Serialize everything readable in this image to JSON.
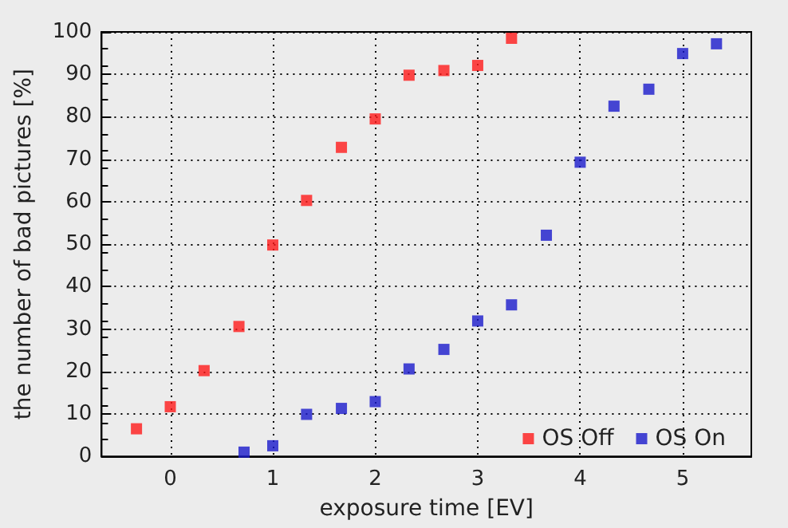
{
  "chart_data": {
    "type": "scatter",
    "xlabel": "exposure time [EV]",
    "ylabel": "the number of bad pictures [%]",
    "xlim": [
      -0.67,
      5.67
    ],
    "ylim": [
      0,
      100
    ],
    "xticks": [
      0,
      1,
      2,
      3,
      4,
      5
    ],
    "yticks": [
      0,
      10,
      20,
      30,
      40,
      50,
      60,
      70,
      80,
      90,
      100
    ],
    "grid": true,
    "legend": "bottom right",
    "marker": "square",
    "series": [
      {
        "name": "OS Off",
        "color": "#ff1a1a",
        "x": [
          -0.33,
          0,
          0.33,
          0.67,
          1,
          1.33,
          1.67,
          2,
          2.33,
          2.67,
          3,
          3.33
        ],
        "values": [
          6.5,
          11.7,
          20.2,
          30.6,
          49.8,
          60.3,
          72.8,
          79.5,
          89.8,
          90.9,
          92.1,
          98.5
        ]
      },
      {
        "name": "OS On",
        "color": "#1a1acc",
        "x": [
          0.72,
          1,
          1.33,
          1.67,
          2,
          2.33,
          2.67,
          3,
          3.33,
          3.67,
          4,
          4.33,
          4.67,
          5,
          5.33
        ],
        "values": [
          1,
          2.5,
          9.9,
          11.3,
          12.9,
          20.6,
          25.2,
          31.9,
          35.7,
          52.1,
          69.3,
          82.5,
          86.5,
          94.9,
          97.2
        ]
      }
    ]
  }
}
